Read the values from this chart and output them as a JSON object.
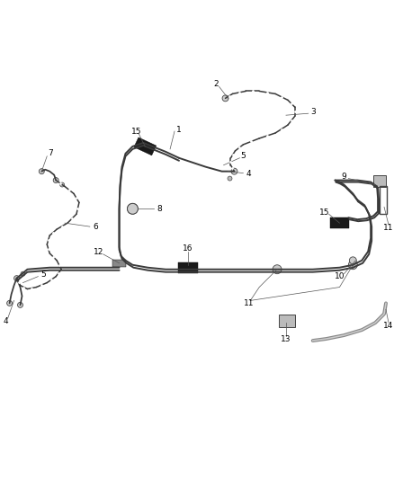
{
  "background_color": "#ffffff",
  "line_color": "#3a3a3a",
  "figsize": [
    4.38,
    5.33
  ],
  "dpi": 100,
  "lw_main": 1.4,
  "lw_flex": 1.1,
  "lw_leader": 0.5,
  "clip_color": "#1a1a1a",
  "label_fontsize": 6.5
}
